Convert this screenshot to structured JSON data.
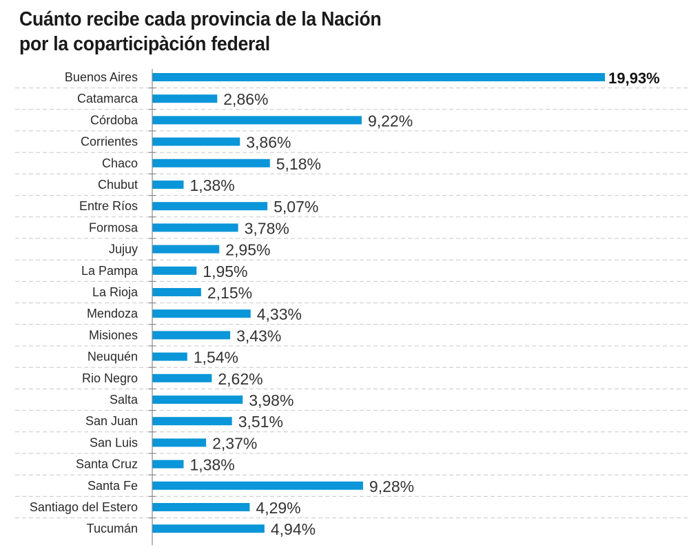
{
  "chart_data": {
    "type": "bar",
    "orientation": "horizontal",
    "title": "Cuánto recibe cada provincia de la Nación por la coparticipàción federal",
    "title_lines": [
      "Cuánto recibe cada provincia de la Nación",
      "por la coparticipàción federal"
    ],
    "xlabel": "",
    "ylabel": "",
    "unit": "%",
    "grid": true,
    "bar_color": "#0a96d8",
    "categories": [
      "Buenos Aires",
      "Catamarca",
      "Córdoba",
      "Corrientes",
      "Chaco",
      "Chubut",
      "Entre Ríos",
      "Formosa",
      "Jujuy",
      "La Pampa",
      "La Rioja",
      "Mendoza",
      "Misiones",
      "Neuquén",
      "Rio Negro",
      "Salta",
      "San Juan",
      "San Luis",
      "Santa Cruz",
      "Santa Fe",
      "Santiago del Estero",
      "Tucumán"
    ],
    "values": [
      19.93,
      2.86,
      9.22,
      3.86,
      5.18,
      1.38,
      5.07,
      3.78,
      2.95,
      1.95,
      2.15,
      4.33,
      3.43,
      1.54,
      2.62,
      3.98,
      3.51,
      2.37,
      1.38,
      9.28,
      4.29,
      4.94
    ],
    "value_labels": [
      "19,93%",
      "2,86%",
      "9,22%",
      "3,86%",
      "5,18%",
      "1,38%",
      "5,07%",
      "3,78%",
      "2,95%",
      "1,95%",
      "2,15%",
      "4,33%",
      "3,43%",
      "1,54%",
      "2,62%",
      "3,98%",
      "3,51%",
      "2,37%",
      "1,38%",
      "9,28%",
      "4,29%",
      "4,94%"
    ],
    "highlighted": [
      "Buenos Aires"
    ],
    "xlim": [
      0,
      19.93
    ]
  }
}
